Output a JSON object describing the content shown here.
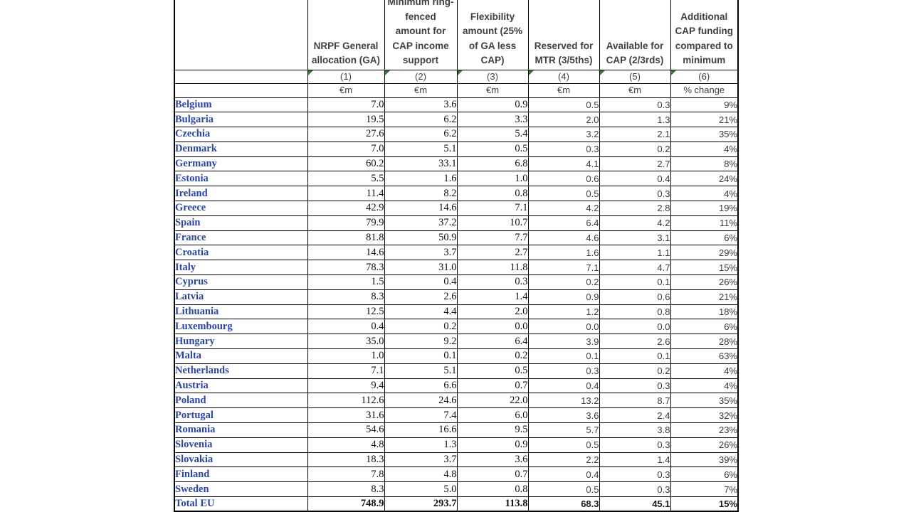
{
  "colors": {
    "country_text_blue": "#2b46a0",
    "grid_border_black": "#000000",
    "error_triangle_green": "#2e7d2e",
    "header_text_gray": "#3f3f3f",
    "background": "#ffffff"
  },
  "table": {
    "columns": [
      {
        "header": "",
        "num": "",
        "unit": "",
        "flag": false
      },
      {
        "header": "NRPF General\nallocation (GA)",
        "num": "(1)",
        "unit": "€m",
        "flag": true
      },
      {
        "header": "Minimum ring-\nfenced\namount for\nCAP income\nsupport",
        "num": "(2)",
        "unit": "€m",
        "flag": true
      },
      {
        "header": "Flexibility\namount (25%\nof GA less\nCAP)",
        "num": "(3)",
        "unit": "€m",
        "flag": true
      },
      {
        "header": "Reserved for\nMTR (3/5ths)",
        "num": "(4)",
        "unit": "€m",
        "flag": true
      },
      {
        "header": "Available for\nCAP (2/3rds)",
        "num": "(5)",
        "unit": "€m",
        "flag": true
      },
      {
        "header": "Additional\nCAP funding\ncompared to\nminimum",
        "num": "(6)",
        "unit": "% change",
        "flag": true
      }
    ],
    "rows": [
      [
        "Belgium",
        "7.0",
        "3.6",
        "0.9",
        "0.5",
        "0.3",
        "9%"
      ],
      [
        "Bulgaria",
        "19.5",
        "6.2",
        "3.3",
        "2.0",
        "1.3",
        "21%"
      ],
      [
        "Czechia",
        "27.6",
        "6.2",
        "5.4",
        "3.2",
        "2.1",
        "35%"
      ],
      [
        "Denmark",
        "7.0",
        "5.1",
        "0.5",
        "0.3",
        "0.2",
        "4%"
      ],
      [
        "Germany",
        "60.2",
        "33.1",
        "6.8",
        "4.1",
        "2.7",
        "8%"
      ],
      [
        "Estonia",
        "5.5",
        "1.6",
        "1.0",
        "0.6",
        "0.4",
        "24%"
      ],
      [
        "Ireland",
        "11.4",
        "8.2",
        "0.8",
        "0.5",
        "0.3",
        "4%"
      ],
      [
        "Greece",
        "42.9",
        "14.6",
        "7.1",
        "4.2",
        "2.8",
        "19%"
      ],
      [
        "Spain",
        "79.9",
        "37.2",
        "10.7",
        "6.4",
        "4.2",
        "11%"
      ],
      [
        "France",
        "81.8",
        "50.9",
        "7.7",
        "4.6",
        "3.1",
        "6%"
      ],
      [
        "Croatia",
        "14.6",
        "3.7",
        "2.7",
        "1.6",
        "1.1",
        "29%"
      ],
      [
        "Italy",
        "78.3",
        "31.0",
        "11.8",
        "7.1",
        "4.7",
        "15%"
      ],
      [
        "Cyprus",
        "1.5",
        "0.4",
        "0.3",
        "0.2",
        "0.1",
        "26%"
      ],
      [
        "Latvia",
        "8.3",
        "2.6",
        "1.4",
        "0.9",
        "0.6",
        "21%"
      ],
      [
        "Lithuania",
        "12.5",
        "4.4",
        "2.0",
        "1.2",
        "0.8",
        "18%"
      ],
      [
        "Luxembourg",
        "0.4",
        "0.2",
        "0.0",
        "0.0",
        "0.0",
        "6%"
      ],
      [
        "Hungary",
        "35.0",
        "9.2",
        "6.4",
        "3.9",
        "2.6",
        "28%"
      ],
      [
        "Malta",
        "1.0",
        "0.1",
        "0.2",
        "0.1",
        "0.1",
        "63%"
      ],
      [
        "Netherlands",
        "7.1",
        "5.1",
        "0.5",
        "0.3",
        "0.2",
        "4%"
      ],
      [
        "Austria",
        "9.4",
        "6.6",
        "0.7",
        "0.4",
        "0.3",
        "4%"
      ],
      [
        "Poland",
        "112.6",
        "24.6",
        "22.0",
        "13.2",
        "8.7",
        "35%"
      ],
      [
        "Portugal",
        "31.6",
        "7.4",
        "6.0",
        "3.6",
        "2.4",
        "32%"
      ],
      [
        "Romania",
        "54.6",
        "16.6",
        "9.5",
        "5.7",
        "3.8",
        "23%"
      ],
      [
        "Slovenia",
        "4.8",
        "1.3",
        "0.9",
        "0.5",
        "0.3",
        "26%"
      ],
      [
        "Slovakia",
        "18.3",
        "3.7",
        "3.6",
        "2.2",
        "1.4",
        "39%"
      ],
      [
        "Finland",
        "7.8",
        "4.8",
        "0.7",
        "0.4",
        "0.3",
        "6%"
      ],
      [
        "Sweden",
        "8.3",
        "5.0",
        "0.8",
        "0.5",
        "0.3",
        "7%"
      ]
    ],
    "total_row": [
      "Total EU",
      "748.9",
      "293.7",
      "113.8",
      "68.3",
      "45.1",
      "15%"
    ]
  }
}
